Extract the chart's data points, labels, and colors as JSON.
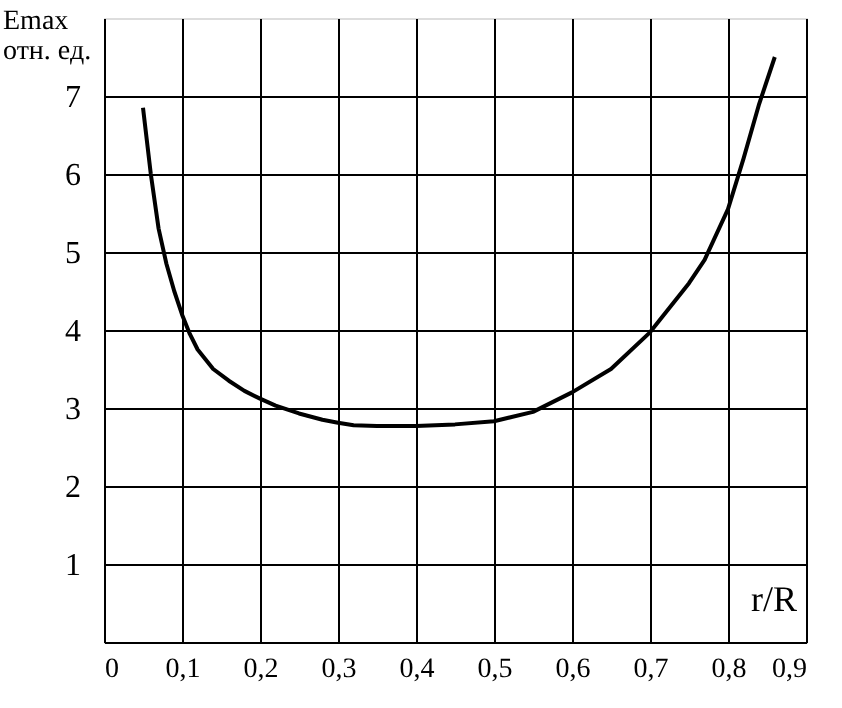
{
  "chart_data": {
    "type": "line",
    "xlabel": "r/R",
    "ylabel": "Emax\nотн. ед.",
    "x": [
      0.05,
      0.06,
      0.07,
      0.08,
      0.09,
      0.1,
      0.11,
      0.12,
      0.14,
      0.16,
      0.18,
      0.2,
      0.22,
      0.25,
      0.28,
      0.3,
      0.32,
      0.35,
      0.4,
      0.45,
      0.5,
      0.55,
      0.6,
      0.65,
      0.7,
      0.75,
      0.77,
      0.8,
      0.82,
      0.84,
      0.86
    ],
    "series": [
      {
        "color": "#000000",
        "values": [
          6.85,
          6.0,
          5.3,
          4.85,
          4.5,
          4.2,
          3.95,
          3.75,
          3.5,
          3.35,
          3.22,
          3.12,
          3.03,
          2.93,
          2.85,
          2.81,
          2.78,
          2.77,
          2.77,
          2.79,
          2.83,
          2.95,
          3.2,
          3.5,
          3.97,
          4.6,
          4.9,
          5.55,
          6.2,
          6.9,
          7.5
        ]
      }
    ],
    "xlim": [
      0,
      0.9
    ],
    "ylim": [
      0,
      8
    ],
    "xticks": [
      {
        "value": 0,
        "label": "0"
      },
      {
        "value": 0.1,
        "label": "0,1"
      },
      {
        "value": 0.2,
        "label": "0,2"
      },
      {
        "value": 0.3,
        "label": "0,3"
      },
      {
        "value": 0.4,
        "label": "0,4"
      },
      {
        "value": 0.5,
        "label": "0,5"
      },
      {
        "value": 0.6,
        "label": "0,6"
      },
      {
        "value": 0.7,
        "label": "0,7"
      },
      {
        "value": 0.8,
        "label": "0,8"
      },
      {
        "value": 0.9,
        "label": "0,9"
      }
    ],
    "yticks": [
      1,
      2,
      3,
      4,
      5,
      6,
      7
    ],
    "grid": true,
    "legend": false,
    "marker": "none",
    "line_style": "solid"
  }
}
